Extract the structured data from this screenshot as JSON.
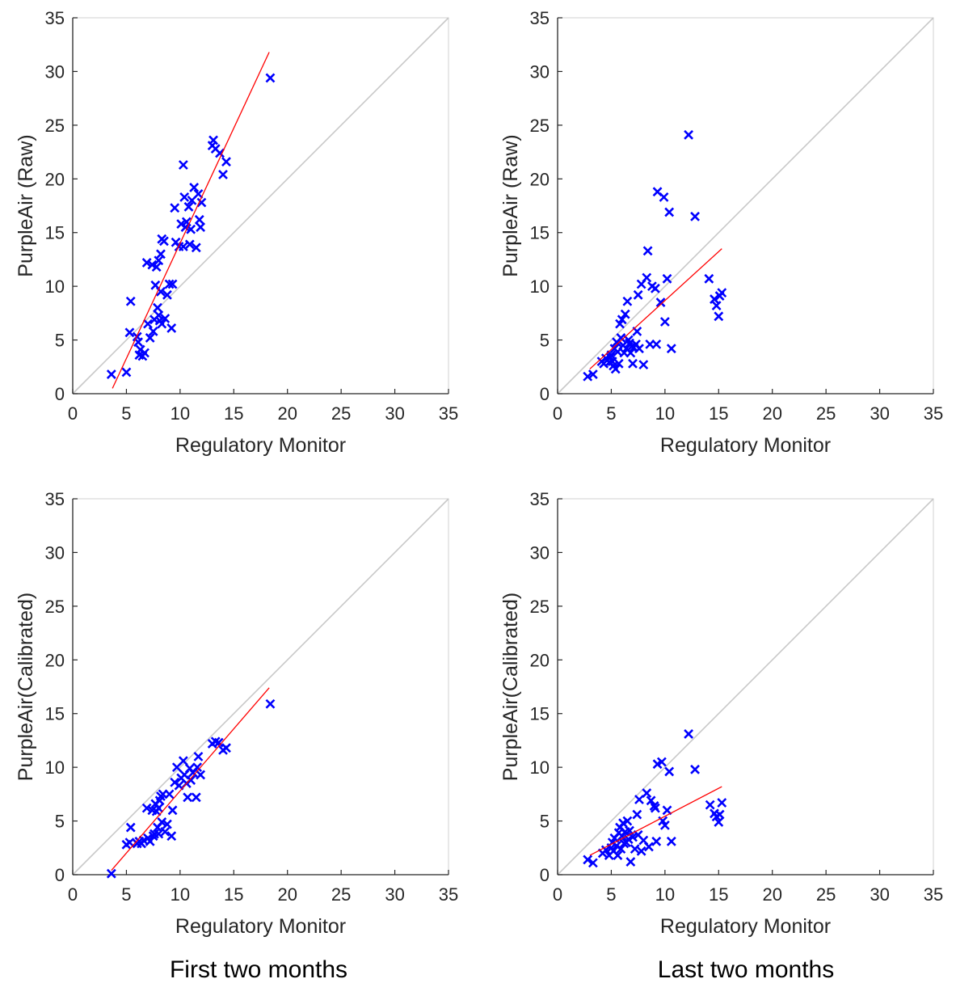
{
  "captions": {
    "left": "First two months",
    "right": "Last two months"
  },
  "colors": {
    "points": "#0000ff",
    "fit_line": "#ff0000",
    "identity_line": "#c8c8c8",
    "axes": "#262626",
    "frame": "#d0d0d0"
  },
  "chart_data": [
    {
      "type": "scatter",
      "panel": "top-left",
      "xlabel": "Regulatory Monitor",
      "ylabel": "PurpleAir (Raw)",
      "xlim": [
        0,
        35
      ],
      "ylim": [
        0,
        35
      ],
      "xticks": [
        0,
        5,
        10,
        15,
        20,
        25,
        30,
        35
      ],
      "yticks": [
        0,
        5,
        10,
        15,
        20,
        25,
        30,
        35
      ],
      "grid": false,
      "marker": "x",
      "reference_line": {
        "type": "identity",
        "from": [
          0,
          0
        ],
        "to": [
          35,
          35
        ]
      },
      "fit_line": {
        "from": [
          3.7,
          0.5
        ],
        "to": [
          18.3,
          31.8
        ]
      },
      "points": [
        [
          3.6,
          1.8
        ],
        [
          5.0,
          2.0
        ],
        [
          5.3,
          5.7
        ],
        [
          5.4,
          8.6
        ],
        [
          6.0,
          5.3
        ],
        [
          6.1,
          4.8
        ],
        [
          6.2,
          3.6
        ],
        [
          6.3,
          4.1
        ],
        [
          6.5,
          3.5
        ],
        [
          6.7,
          3.8
        ],
        [
          6.9,
          12.2
        ],
        [
          7.0,
          6.5
        ],
        [
          7.2,
          5.2
        ],
        [
          7.4,
          12.0
        ],
        [
          7.5,
          5.8
        ],
        [
          7.6,
          6.9
        ],
        [
          7.7,
          10.1
        ],
        [
          7.8,
          11.8
        ],
        [
          7.9,
          8.0
        ],
        [
          8.0,
          12.4
        ],
        [
          8.0,
          7.3
        ],
        [
          8.1,
          6.8
        ],
        [
          8.2,
          13.0
        ],
        [
          8.2,
          9.5
        ],
        [
          8.3,
          14.4
        ],
        [
          8.3,
          6.5
        ],
        [
          8.5,
          14.2
        ],
        [
          8.6,
          7.0
        ],
        [
          8.8,
          9.2
        ],
        [
          9.0,
          10.2
        ],
        [
          9.2,
          6.1
        ],
        [
          9.3,
          10.2
        ],
        [
          9.5,
          17.3
        ],
        [
          9.6,
          14.1
        ],
        [
          9.9,
          13.7
        ],
        [
          10.1,
          15.8
        ],
        [
          10.3,
          21.3
        ],
        [
          10.3,
          13.7
        ],
        [
          10.4,
          18.3
        ],
        [
          10.5,
          15.5
        ],
        [
          10.6,
          16.0
        ],
        [
          10.8,
          17.4
        ],
        [
          10.9,
          13.9
        ],
        [
          11.0,
          15.3
        ],
        [
          11.1,
          18.0
        ],
        [
          11.3,
          19.2
        ],
        [
          11.5,
          13.6
        ],
        [
          11.7,
          18.6
        ],
        [
          11.8,
          16.2
        ],
        [
          11.9,
          15.5
        ],
        [
          12.0,
          17.8
        ],
        [
          13.0,
          23.1
        ],
        [
          13.1,
          23.6
        ],
        [
          13.3,
          22.8
        ],
        [
          13.7,
          22.4
        ],
        [
          14.0,
          20.4
        ],
        [
          14.3,
          21.6
        ],
        [
          18.4,
          29.4
        ]
      ]
    },
    {
      "type": "scatter",
      "panel": "top-right",
      "xlabel": "Regulatory Monitor",
      "ylabel": "PurpleAir (Raw)",
      "xlim": [
        0,
        35
      ],
      "ylim": [
        0,
        35
      ],
      "xticks": [
        0,
        5,
        10,
        15,
        20,
        25,
        30,
        35
      ],
      "yticks": [
        0,
        5,
        10,
        15,
        20,
        25,
        30,
        35
      ],
      "grid": false,
      "marker": "x",
      "reference_line": {
        "type": "identity",
        "from": [
          0,
          0
        ],
        "to": [
          35,
          35
        ]
      },
      "fit_line": {
        "from": [
          3.0,
          2.3
        ],
        "to": [
          15.3,
          13.5
        ]
      },
      "points": [
        [
          2.8,
          1.6
        ],
        [
          3.3,
          1.8
        ],
        [
          4.1,
          3.0
        ],
        [
          4.3,
          2.8
        ],
        [
          4.5,
          3.3
        ],
        [
          4.8,
          2.9
        ],
        [
          4.9,
          3.4
        ],
        [
          5.0,
          3.6
        ],
        [
          5.1,
          3.0
        ],
        [
          5.2,
          2.6
        ],
        [
          5.3,
          4.2
        ],
        [
          5.4,
          2.3
        ],
        [
          5.5,
          4.8
        ],
        [
          5.6,
          3.9
        ],
        [
          5.7,
          2.8
        ],
        [
          5.8,
          6.5
        ],
        [
          5.9,
          5.2
        ],
        [
          6.0,
          6.9
        ],
        [
          6.1,
          4.5
        ],
        [
          6.2,
          3.8
        ],
        [
          6.3,
          7.4
        ],
        [
          6.4,
          4.2
        ],
        [
          6.5,
          8.6
        ],
        [
          6.6,
          5.0
        ],
        [
          6.7,
          4.7
        ],
        [
          6.8,
          3.8
        ],
        [
          6.9,
          4.4
        ],
        [
          7.0,
          2.8
        ],
        [
          7.1,
          4.3
        ],
        [
          7.3,
          4.6
        ],
        [
          7.4,
          5.8
        ],
        [
          7.5,
          9.2
        ],
        [
          7.6,
          4.2
        ],
        [
          7.8,
          10.2
        ],
        [
          8.0,
          2.7
        ],
        [
          8.3,
          10.8
        ],
        [
          8.4,
          13.3
        ],
        [
          8.6,
          4.6
        ],
        [
          8.8,
          10.0
        ],
        [
          9.1,
          9.8
        ],
        [
          9.2,
          4.6
        ],
        [
          9.3,
          18.8
        ],
        [
          9.6,
          8.5
        ],
        [
          9.9,
          18.3
        ],
        [
          10.0,
          6.7
        ],
        [
          10.2,
          10.7
        ],
        [
          10.4,
          16.9
        ],
        [
          10.6,
          4.2
        ],
        [
          12.2,
          24.1
        ],
        [
          12.8,
          16.5
        ],
        [
          14.1,
          10.7
        ],
        [
          14.6,
          8.8
        ],
        [
          14.8,
          8.2
        ],
        [
          15.0,
          7.2
        ],
        [
          15.1,
          9.1
        ],
        [
          15.3,
          9.4
        ]
      ]
    },
    {
      "type": "scatter",
      "panel": "bottom-left",
      "xlabel": "Regulatory Monitor",
      "ylabel": "PurpleAir(Calibrated)",
      "xlim": [
        0,
        35
      ],
      "ylim": [
        0,
        35
      ],
      "xticks": [
        0,
        5,
        10,
        15,
        20,
        25,
        30,
        35
      ],
      "yticks": [
        0,
        5,
        10,
        15,
        20,
        25,
        30,
        35
      ],
      "grid": false,
      "marker": "x",
      "reference_line": {
        "type": "identity",
        "from": [
          0,
          0
        ],
        "to": [
          35,
          35
        ]
      },
      "fit_line": {
        "from": [
          3.6,
          0.4
        ],
        "to": [
          18.3,
          17.4
        ]
      },
      "points": [
        [
          3.6,
          0.1
        ],
        [
          5.0,
          2.8
        ],
        [
          5.3,
          3.0
        ],
        [
          5.4,
          4.4
        ],
        [
          6.0,
          2.9
        ],
        [
          6.2,
          3.1
        ],
        [
          6.4,
          2.9
        ],
        [
          6.6,
          3.2
        ],
        [
          6.9,
          6.2
        ],
        [
          7.0,
          3.4
        ],
        [
          7.2,
          3.1
        ],
        [
          7.4,
          6.0
        ],
        [
          7.5,
          3.6
        ],
        [
          7.6,
          3.8
        ],
        [
          7.7,
          6.6
        ],
        [
          7.8,
          5.9
        ],
        [
          7.9,
          4.4
        ],
        [
          8.0,
          6.2
        ],
        [
          8.0,
          3.8
        ],
        [
          8.1,
          6.9
        ],
        [
          8.2,
          7.3
        ],
        [
          8.3,
          4.9
        ],
        [
          8.4,
          7.5
        ],
        [
          8.6,
          4.0
        ],
        [
          8.8,
          4.7
        ],
        [
          9.0,
          7.5
        ],
        [
          9.2,
          3.6
        ],
        [
          9.3,
          6.0
        ],
        [
          9.5,
          8.6
        ],
        [
          9.7,
          10.0
        ],
        [
          9.9,
          8.3
        ],
        [
          10.1,
          9.0
        ],
        [
          10.3,
          10.6
        ],
        [
          10.4,
          9.3
        ],
        [
          10.6,
          8.5
        ],
        [
          10.7,
          7.2
        ],
        [
          10.9,
          9.9
        ],
        [
          11.0,
          8.8
        ],
        [
          11.2,
          9.5
        ],
        [
          11.5,
          7.2
        ],
        [
          11.6,
          10.0
        ],
        [
          11.7,
          11.0
        ],
        [
          11.9,
          9.3
        ],
        [
          13.0,
          12.2
        ],
        [
          13.3,
          12.4
        ],
        [
          13.6,
          12.3
        ],
        [
          14.0,
          11.6
        ],
        [
          14.3,
          11.8
        ],
        [
          18.4,
          15.9
        ]
      ]
    },
    {
      "type": "scatter",
      "panel": "bottom-right",
      "xlabel": "Regulatory Monitor",
      "ylabel": "PurpleAir(Calibrated)",
      "xlim": [
        0,
        35
      ],
      "ylim": [
        0,
        35
      ],
      "xticks": [
        0,
        5,
        10,
        15,
        20,
        25,
        30,
        35
      ],
      "yticks": [
        0,
        5,
        10,
        15,
        20,
        25,
        30,
        35
      ],
      "grid": false,
      "marker": "x",
      "reference_line": {
        "type": "identity",
        "from": [
          0,
          0
        ],
        "to": [
          35,
          35
        ]
      },
      "fit_line": {
        "from": [
          3.0,
          1.8
        ],
        "to": [
          15.3,
          8.2
        ]
      },
      "points": [
        [
          2.8,
          1.4
        ],
        [
          3.3,
          1.1
        ],
        [
          4.2,
          2.0
        ],
        [
          4.5,
          2.3
        ],
        [
          4.8,
          1.8
        ],
        [
          5.0,
          2.5
        ],
        [
          5.1,
          3.0
        ],
        [
          5.2,
          2.2
        ],
        [
          5.3,
          3.4
        ],
        [
          5.5,
          2.7
        ],
        [
          5.6,
          1.8
        ],
        [
          5.7,
          3.9
        ],
        [
          5.8,
          4.4
        ],
        [
          5.9,
          2.4
        ],
        [
          6.0,
          3.6
        ],
        [
          6.1,
          4.8
        ],
        [
          6.2,
          2.9
        ],
        [
          6.3,
          4.0
        ],
        [
          6.4,
          3.0
        ],
        [
          6.5,
          5.0
        ],
        [
          6.6,
          3.3
        ],
        [
          6.7,
          4.1
        ],
        [
          6.8,
          1.2
        ],
        [
          7.0,
          3.5
        ],
        [
          7.2,
          2.4
        ],
        [
          7.4,
          5.6
        ],
        [
          7.5,
          3.7
        ],
        [
          7.6,
          7.0
        ],
        [
          7.8,
          2.2
        ],
        [
          8.0,
          3.2
        ],
        [
          8.3,
          7.6
        ],
        [
          8.5,
          2.6
        ],
        [
          8.7,
          6.9
        ],
        [
          9.0,
          6.4
        ],
        [
          9.1,
          6.2
        ],
        [
          9.2,
          3.1
        ],
        [
          9.3,
          10.3
        ],
        [
          9.7,
          10.5
        ],
        [
          9.8,
          5.0
        ],
        [
          10.0,
          4.6
        ],
        [
          10.2,
          6.0
        ],
        [
          10.4,
          9.6
        ],
        [
          10.6,
          3.1
        ],
        [
          12.2,
          13.1
        ],
        [
          12.8,
          9.8
        ],
        [
          14.2,
          6.5
        ],
        [
          14.6,
          5.7
        ],
        [
          14.8,
          5.4
        ],
        [
          15.0,
          4.9
        ],
        [
          15.1,
          5.6
        ],
        [
          15.3,
          6.7
        ]
      ]
    }
  ]
}
